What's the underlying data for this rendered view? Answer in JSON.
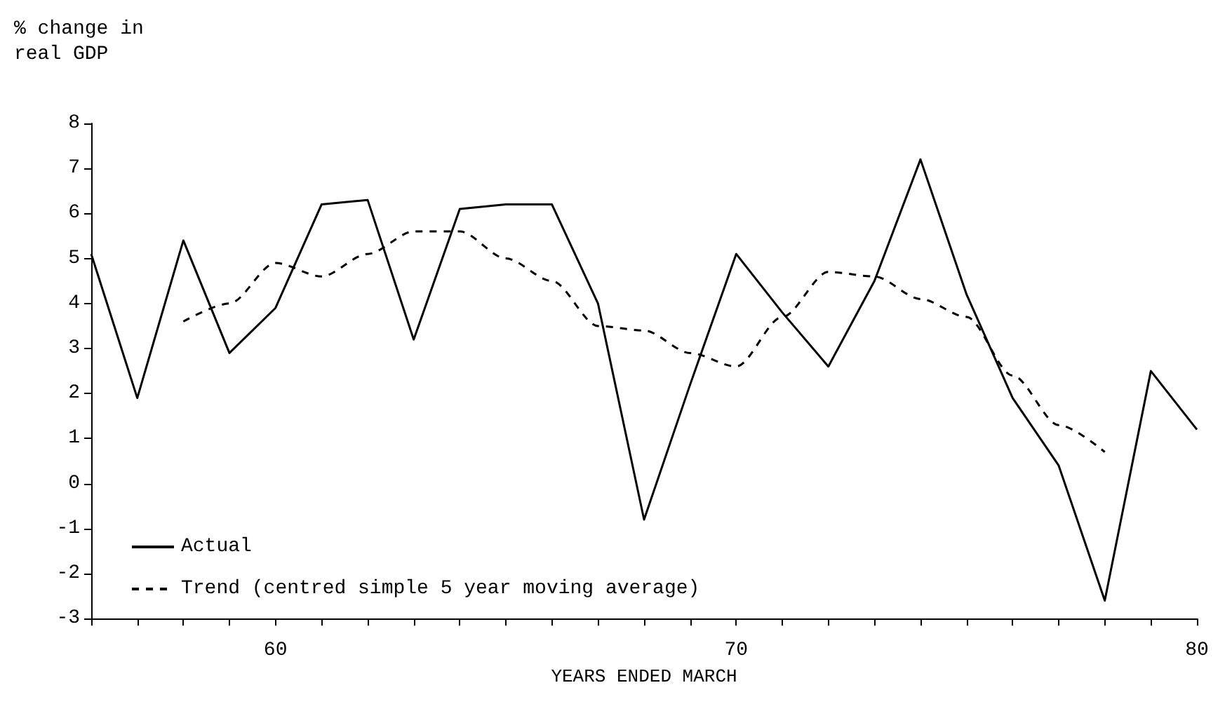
{
  "chart_data": {
    "type": "line",
    "ylabel": "% change in\nreal GDP",
    "xlabel": "YEARS ENDED MARCH",
    "series": [
      {
        "name": "Actual",
        "color": "#000000",
        "line_style": "solid",
        "x": [
          56,
          57,
          58,
          59,
          60,
          61,
          62,
          63,
          64,
          65,
          66,
          67,
          68,
          69,
          70,
          71,
          72,
          73,
          74,
          75,
          76,
          77,
          78,
          79,
          80
        ],
        "values": [
          5.1,
          1.9,
          5.4,
          2.9,
          3.9,
          6.2,
          6.3,
          3.2,
          6.1,
          6.2,
          6.2,
          4.0,
          -0.8,
          2.2,
          5.1,
          3.8,
          2.6,
          4.5,
          7.2,
          4.2,
          1.9,
          0.4,
          -2.6,
          2.5,
          1.2
        ]
      },
      {
        "name": "Trend (centred simple 5 year moving average)",
        "color": "#000000",
        "line_style": "dashed",
        "x": [
          58,
          59,
          60,
          61,
          62,
          63,
          64,
          65,
          66,
          67,
          68,
          69,
          70,
          71,
          72,
          73,
          74,
          75,
          76,
          77,
          78
        ],
        "values": [
          3.6,
          4.0,
          4.9,
          4.6,
          5.1,
          5.6,
          5.6,
          5.0,
          4.5,
          3.5,
          3.4,
          2.9,
          2.6,
          3.7,
          4.7,
          4.6,
          4.1,
          3.7,
          2.4,
          1.3,
          0.7
        ]
      }
    ],
    "xlim": [
      56,
      80
    ],
    "xticks": [
      {
        "value": 56,
        "label": null
      },
      {
        "value": 57,
        "label": null
      },
      {
        "value": 58,
        "label": null
      },
      {
        "value": 59,
        "label": null
      },
      60,
      {
        "value": 61,
        "label": null
      },
      {
        "value": 62,
        "label": null
      },
      {
        "value": 63,
        "label": null
      },
      {
        "value": 64,
        "label": null
      },
      {
        "value": 65,
        "label": null
      },
      {
        "value": 66,
        "label": null
      },
      {
        "value": 67,
        "label": null
      },
      {
        "value": 68,
        "label": null
      },
      {
        "value": 69,
        "label": null
      },
      70,
      {
        "value": 71,
        "label": null
      },
      {
        "value": 72,
        "label": null
      },
      {
        "value": 73,
        "label": null
      },
      {
        "value": 74,
        "label": null
      },
      {
        "value": 75,
        "label": null
      },
      {
        "value": 76,
        "label": null
      },
      {
        "value": 77,
        "label": null
      },
      {
        "value": 78,
        "label": null
      },
      {
        "value": 79,
        "label": null
      },
      80
    ],
    "ylim": [
      -3,
      8
    ],
    "yticks": [
      -3,
      -2,
      -1,
      0,
      1,
      2,
      3,
      4,
      5,
      6,
      7,
      8
    ],
    "grid": false,
    "legend": "bottom left",
    "marker": "none"
  }
}
